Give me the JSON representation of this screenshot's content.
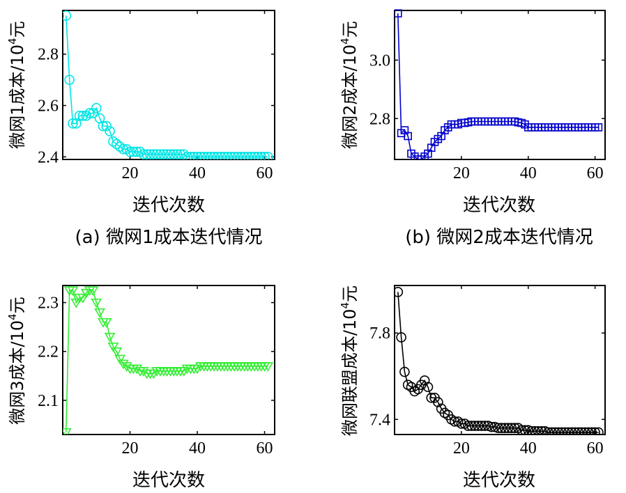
{
  "chart_data": [
    {
      "type": "line",
      "panel": "a",
      "color": "#00e5e5",
      "marker": "circle",
      "caption": "(a) 微网1成本迭代情况",
      "xlabel": "迭代次数",
      "ylabel_main": "微网1成本/10",
      "ylabel_sup": "4",
      "ylabel_unit": "元",
      "xlim": [
        0,
        63
      ],
      "ylim": [
        2.39,
        2.97
      ],
      "xticks": [
        20,
        40,
        60
      ],
      "yticks": [
        2.4,
        2.6,
        2.8
      ],
      "xtick_labels": [
        "20",
        "40",
        "60"
      ],
      "ytick_labels": [
        "2.4",
        "2.6",
        "2.8"
      ],
      "x": [
        1,
        2,
        3,
        4,
        5,
        6,
        7,
        8,
        9,
        10,
        11,
        12,
        13,
        14,
        15,
        16,
        17,
        18,
        19,
        20,
        21,
        22,
        23,
        24,
        25,
        26,
        27,
        28,
        29,
        30,
        31,
        32,
        33,
        34,
        35,
        36,
        37,
        38,
        39,
        40,
        41,
        42,
        43,
        44,
        45,
        46,
        47,
        48,
        49,
        50,
        51,
        52,
        53,
        54,
        55,
        56,
        57,
        58,
        59,
        60,
        61
      ],
      "y": [
        2.95,
        2.7,
        2.53,
        2.53,
        2.56,
        2.56,
        2.56,
        2.57,
        2.57,
        2.59,
        2.55,
        2.52,
        2.52,
        2.5,
        2.46,
        2.45,
        2.44,
        2.43,
        2.43,
        2.42,
        2.42,
        2.42,
        2.42,
        2.41,
        2.41,
        2.41,
        2.41,
        2.41,
        2.41,
        2.41,
        2.41,
        2.41,
        2.41,
        2.41,
        2.41,
        2.41,
        2.4,
        2.4,
        2.4,
        2.4,
        2.4,
        2.4,
        2.4,
        2.4,
        2.4,
        2.4,
        2.4,
        2.4,
        2.4,
        2.4,
        2.4,
        2.4,
        2.4,
        2.4,
        2.4,
        2.4,
        2.4,
        2.4,
        2.4,
        2.4,
        2.4
      ]
    },
    {
      "type": "line",
      "panel": "b",
      "color": "#0000cc",
      "marker": "square",
      "caption": "(b) 微网2成本迭代情况",
      "xlabel": "迭代次数",
      "ylabel_main": "微网2成本/10",
      "ylabel_sup": "4",
      "ylabel_unit": "元",
      "xlim": [
        0,
        63
      ],
      "ylim": [
        2.66,
        3.17
      ],
      "xticks": [
        20,
        40,
        60
      ],
      "yticks": [
        2.8,
        3.0
      ],
      "xtick_labels": [
        "20",
        "40",
        "60"
      ],
      "ytick_labels": [
        "2.8",
        "3.0"
      ],
      "x": [
        1,
        2,
        3,
        4,
        5,
        6,
        7,
        8,
        9,
        10,
        11,
        12,
        13,
        14,
        15,
        16,
        17,
        18,
        19,
        20,
        21,
        22,
        23,
        24,
        25,
        26,
        27,
        28,
        29,
        30,
        31,
        32,
        33,
        34,
        35,
        36,
        37,
        38,
        39,
        40,
        41,
        42,
        43,
        44,
        45,
        46,
        47,
        48,
        49,
        50,
        51,
        52,
        53,
        54,
        55,
        56,
        57,
        58,
        59,
        60,
        61
      ],
      "y": [
        3.16,
        2.75,
        2.76,
        2.74,
        2.68,
        2.67,
        2.66,
        2.66,
        2.67,
        2.68,
        2.7,
        2.72,
        2.73,
        2.74,
        2.76,
        2.77,
        2.78,
        2.78,
        2.78,
        2.785,
        2.785,
        2.787,
        2.79,
        2.79,
        2.79,
        2.79,
        2.79,
        2.79,
        2.79,
        2.79,
        2.79,
        2.79,
        2.79,
        2.79,
        2.79,
        2.79,
        2.787,
        2.785,
        2.78,
        2.77,
        2.77,
        2.77,
        2.77,
        2.77,
        2.77,
        2.77,
        2.77,
        2.77,
        2.77,
        2.77,
        2.77,
        2.77,
        2.77,
        2.77,
        2.77,
        2.77,
        2.77,
        2.77,
        2.77,
        2.77,
        2.77
      ]
    },
    {
      "type": "line",
      "panel": "c",
      "color": "#33ee33",
      "marker": "triangle-down",
      "caption": "",
      "xlabel": "迭代次数",
      "ylabel_main": "微网3成本/10",
      "ylabel_sup": "4",
      "ylabel_unit": "元",
      "xlim": [
        0,
        63
      ],
      "ylim": [
        2.03,
        2.335
      ],
      "xticks": [
        20,
        40,
        60
      ],
      "yticks": [
        2.1,
        2.2,
        2.3
      ],
      "xtick_labels": [
        "20",
        "40",
        "60"
      ],
      "ytick_labels": [
        "2.1",
        "2.2",
        "2.3"
      ],
      "x": [
        1,
        2,
        3,
        4,
        5,
        6,
        7,
        8,
        9,
        10,
        11,
        12,
        13,
        14,
        15,
        16,
        17,
        18,
        19,
        20,
        21,
        22,
        23,
        24,
        25,
        26,
        27,
        28,
        29,
        30,
        31,
        32,
        33,
        34,
        35,
        36,
        37,
        38,
        39,
        40,
        41,
        42,
        43,
        44,
        45,
        46,
        47,
        48,
        49,
        50,
        51,
        52,
        53,
        54,
        55,
        56,
        57,
        58,
        59,
        60,
        61
      ],
      "y": [
        2.035,
        2.325,
        2.325,
        2.3,
        2.31,
        2.31,
        2.32,
        2.325,
        2.325,
        2.3,
        2.28,
        2.26,
        2.26,
        2.23,
        2.21,
        2.2,
        2.185,
        2.175,
        2.17,
        2.165,
        2.165,
        2.165,
        2.16,
        2.16,
        2.155,
        2.155,
        2.155,
        2.16,
        2.16,
        2.16,
        2.16,
        2.16,
        2.16,
        2.16,
        2.16,
        2.16,
        2.165,
        2.165,
        2.165,
        2.165,
        2.17,
        2.17,
        2.17,
        2.17,
        2.17,
        2.17,
        2.17,
        2.17,
        2.17,
        2.17,
        2.17,
        2.17,
        2.17,
        2.17,
        2.17,
        2.17,
        2.17,
        2.17,
        2.17,
        2.17,
        2.17
      ]
    },
    {
      "type": "line",
      "panel": "d",
      "color": "#000000",
      "marker": "circle",
      "caption": "",
      "xlabel": "迭代次数",
      "ylabel_main": "微网联盟成本/10",
      "ylabel_sup": "4",
      "ylabel_unit": "元",
      "xlim": [
        0,
        63
      ],
      "ylim": [
        7.33,
        8.02
      ],
      "xticks": [
        20,
        40,
        60
      ],
      "yticks": [
        7.4,
        7.8
      ],
      "xtick_labels": [
        "20",
        "40",
        "60"
      ],
      "ytick_labels": [
        "7.4",
        "7.8"
      ],
      "x": [
        1,
        2,
        3,
        4,
        5,
        6,
        7,
        8,
        9,
        10,
        11,
        12,
        13,
        14,
        15,
        16,
        17,
        18,
        19,
        20,
        21,
        22,
        23,
        24,
        25,
        26,
        27,
        28,
        29,
        30,
        31,
        32,
        33,
        34,
        35,
        36,
        37,
        38,
        39,
        40,
        41,
        42,
        43,
        44,
        45,
        46,
        47,
        48,
        49,
        50,
        51,
        52,
        53,
        54,
        55,
        56,
        57,
        58,
        59,
        60,
        61
      ],
      "y": [
        7.99,
        7.78,
        7.62,
        7.56,
        7.55,
        7.53,
        7.54,
        7.56,
        7.58,
        7.55,
        7.5,
        7.5,
        7.48,
        7.45,
        7.43,
        7.42,
        7.4,
        7.39,
        7.39,
        7.38,
        7.38,
        7.37,
        7.37,
        7.37,
        7.37,
        7.37,
        7.37,
        7.37,
        7.365,
        7.365,
        7.36,
        7.36,
        7.36,
        7.36,
        7.36,
        7.36,
        7.36,
        7.35,
        7.35,
        7.35,
        7.345,
        7.345,
        7.345,
        7.345,
        7.345,
        7.34,
        7.34,
        7.34,
        7.34,
        7.34,
        7.34,
        7.34,
        7.34,
        7.34,
        7.34,
        7.34,
        7.34,
        7.34,
        7.34,
        7.34,
        7.34
      ]
    }
  ]
}
